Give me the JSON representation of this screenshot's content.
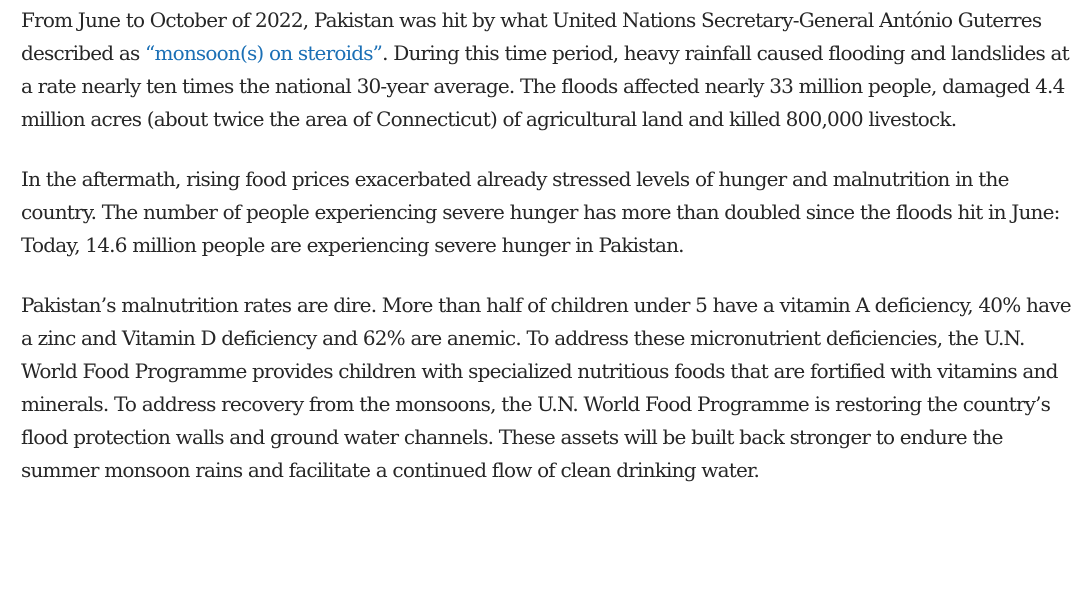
{
  "article": {
    "p1": {
      "before_link": "From June to October of 2022, Pakistan was hit by what United Nations Secretary-General António Guterres described as ",
      "link_text": "“monsoon(s) on steroids”",
      "after_link": ". During this time period, heavy rainfall caused flooding and landslides at a rate nearly ten times the national 30-year average. The floods affected nearly 33 million people, damaged 4.4 million acres (about twice the area of Connecticut) of agricultural land and killed 800,000 livestock."
    },
    "p2": "In the aftermath, rising food prices exacerbated already stressed levels of hunger and malnutrition in the country. The number of people experiencing severe hunger has more than doubled since the floods hit in June: Today, 14.6 million people are experiencing severe hunger in Pakistan.",
    "p3": "Pakistan’s malnutrition rates are dire. More than half of children under 5 have a vitamin A deficiency, 40% have a zinc and Vitamin D deficiency and 62% are anemic. To address these micronutrient deficiencies, the U.N. World Food Programme provides children with specialized nutritious foods that are fortified with vitamins and minerals. To address recovery from the monsoons, the U.N. World Food Programme is restoring the country’s flood protection walls and ground water channels. These assets will be built back stronger to endure the summer monsoon rains and facilitate a continued flow of clean drinking water."
  },
  "colors": {
    "text": "#262626",
    "link": "#1a6fb5",
    "background": "#ffffff"
  }
}
